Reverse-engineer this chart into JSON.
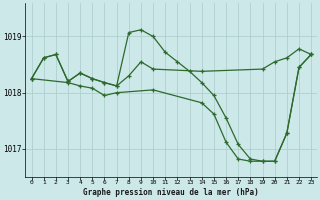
{
  "title": "Graphe pression niveau de la mer (hPa)",
  "background_color": "#cce8e8",
  "grid_color": "#aacccc",
  "line_color": "#2d6a2d",
  "ylim": [
    1016.5,
    1019.6
  ],
  "xlim": [
    -0.5,
    23.5
  ],
  "yticks": [
    1017,
    1018,
    1019
  ],
  "xticks": [
    0,
    1,
    2,
    3,
    4,
    5,
    6,
    7,
    8,
    9,
    10,
    11,
    12,
    13,
    14,
    15,
    16,
    17,
    18,
    19,
    20,
    21,
    22,
    23
  ],
  "series_x": [
    [
      0,
      1,
      2,
      3,
      4,
      5,
      6,
      7,
      8,
      9,
      10,
      11,
      12,
      13,
      14,
      15,
      16,
      17,
      18,
      19,
      20,
      21,
      22,
      23
    ],
    [
      0,
      1,
      2,
      3,
      4,
      5,
      6,
      7,
      8,
      9,
      10,
      14,
      19,
      20,
      21,
      22,
      23
    ],
    [
      0,
      3,
      4,
      5,
      6,
      7,
      10,
      14,
      15,
      16,
      17,
      18,
      19,
      20,
      21,
      22,
      23
    ]
  ],
  "series_y": [
    [
      1018.25,
      1018.62,
      1018.68,
      1018.2,
      1018.35,
      1018.25,
      1018.18,
      1018.12,
      1019.07,
      1019.12,
      1019.0,
      1018.72,
      1018.55,
      1018.38,
      1018.18,
      1017.95,
      1017.55,
      1017.08,
      1016.82,
      1016.78,
      1016.78,
      1017.28,
      1018.45,
      1018.68
    ],
    [
      1018.25,
      1018.62,
      1018.68,
      1018.2,
      1018.35,
      1018.25,
      1018.18,
      1018.12,
      1018.3,
      1018.55,
      1018.42,
      1018.38,
      1018.42,
      1018.55,
      1018.62,
      1018.78,
      1018.68
    ],
    [
      1018.25,
      1018.18,
      1018.12,
      1018.08,
      1017.95,
      1018.0,
      1018.05,
      1017.82,
      1017.62,
      1017.12,
      1016.82,
      1016.78,
      1016.78,
      1016.78,
      1017.28,
      1018.45,
      1018.68
    ]
  ]
}
